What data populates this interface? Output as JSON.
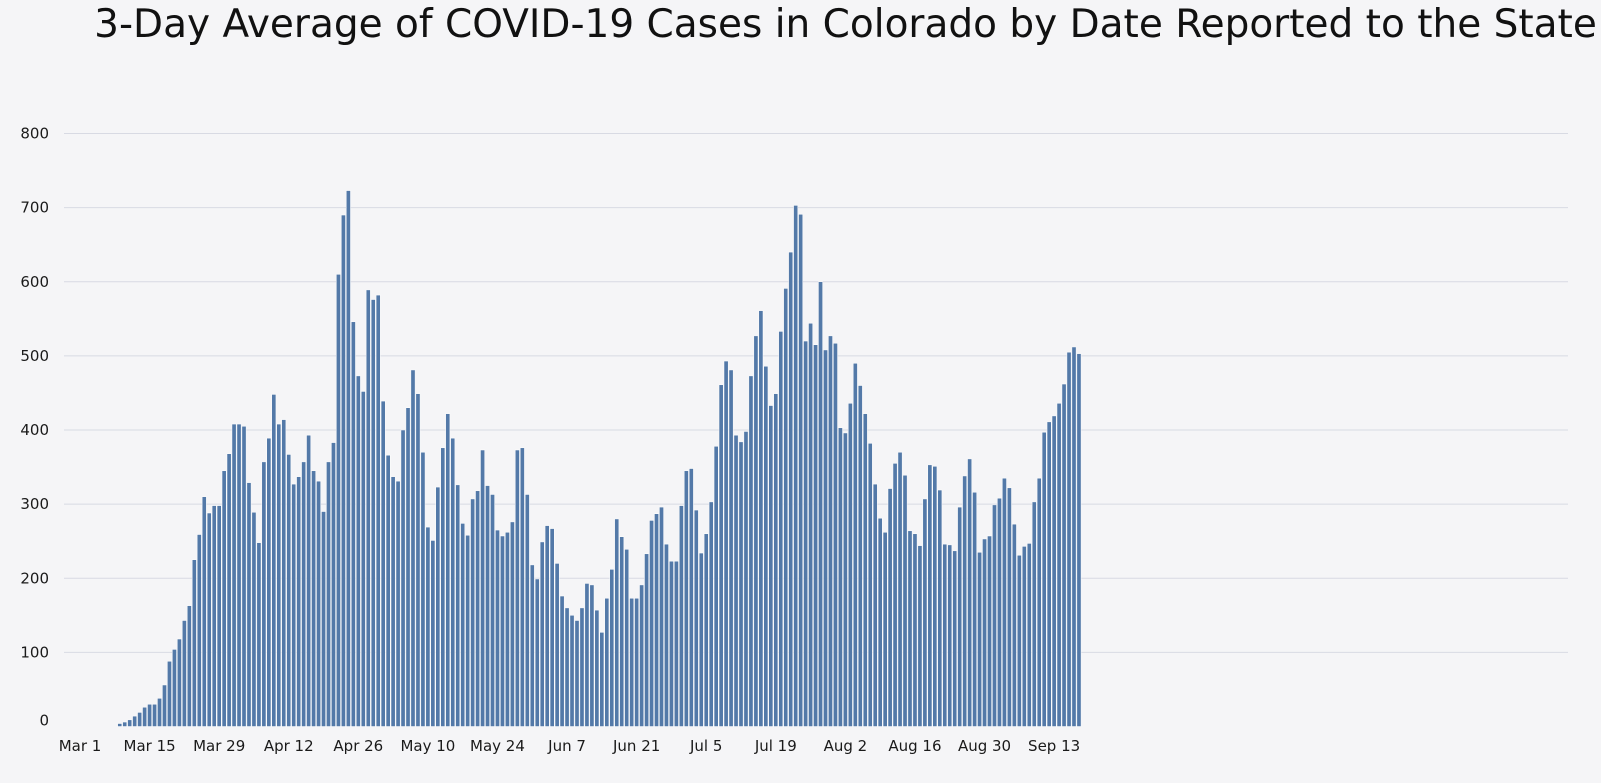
{
  "chart_data": {
    "type": "bar",
    "title": "3-Day Average of COVID-19 Cases in Colorado by Date Reported to the State",
    "xlabel": "",
    "ylabel": "",
    "ylim": [
      0,
      800
    ],
    "yticks": [
      0,
      100,
      200,
      300,
      400,
      500,
      600,
      700,
      800
    ],
    "grid": true,
    "legend": "none",
    "bar_color": "#5379a8",
    "bar_edge_color": "#ffffff",
    "background_color": "#f5f5f7",
    "grid_color": "#d8dae3",
    "start_date": "Mar 1",
    "xtick_labels": [
      {
        "label": "Mar 1",
        "index": 0
      },
      {
        "label": "Mar 15",
        "index": 14
      },
      {
        "label": "Mar 29",
        "index": 28
      },
      {
        "label": "Apr 12",
        "index": 42
      },
      {
        "label": "Apr 26",
        "index": 56
      },
      {
        "label": "May 10",
        "index": 70
      },
      {
        "label": "May 24",
        "index": 84
      },
      {
        "label": "Jun 7",
        "index": 98
      },
      {
        "label": "Jun 21",
        "index": 112
      },
      {
        "label": "Jul 5",
        "index": 126
      },
      {
        "label": "Jul 19",
        "index": 140
      },
      {
        "label": "Aug 2",
        "index": 154
      },
      {
        "label": "Aug 16",
        "index": 168
      },
      {
        "label": "Aug 30",
        "index": 182
      },
      {
        "label": "Sep 13",
        "index": 196
      }
    ],
    "values": [
      0,
      0,
      0,
      0,
      0,
      0,
      0,
      0,
      4,
      6,
      9,
      14,
      19,
      26,
      30,
      30,
      38,
      56,
      88,
      104,
      118,
      143,
      163,
      225,
      259,
      310,
      288,
      298,
      298,
      345,
      368,
      408,
      408,
      405,
      329,
      289,
      248,
      357,
      389,
      448,
      408,
      414,
      367,
      327,
      337,
      357,
      393,
      345,
      331,
      290,
      357,
      383,
      610,
      690,
      723,
      546,
      473,
      452,
      589,
      576,
      582,
      439,
      366,
      337,
      331,
      400,
      430,
      481,
      449,
      370,
      269,
      251,
      323,
      376,
      422,
      389,
      326,
      274,
      258,
      307,
      318,
      373,
      325,
      313,
      265,
      257,
      262,
      276,
      373,
      376,
      313,
      218,
      199,
      249,
      271,
      267,
      220,
      176,
      160,
      150,
      143,
      160,
      193,
      191,
      157,
      127,
      173,
      212,
      280,
      256,
      239,
      173,
      173,
      191,
      233,
      278,
      287,
      296,
      246,
      223,
      223,
      298,
      345,
      348,
      292,
      234,
      260,
      303,
      378,
      461,
      493,
      481,
      393,
      384,
      398,
      473,
      527,
      561,
      486,
      433,
      449,
      533,
      591,
      640,
      703,
      691,
      520,
      544,
      515,
      600,
      508,
      527,
      517,
      403,
      396,
      436,
      490,
      460,
      422,
      382,
      327,
      281,
      262,
      321,
      355,
      370,
      339,
      264,
      260,
      244,
      307,
      353,
      351,
      319,
      246,
      245,
      237,
      296,
      338,
      361,
      316,
      235,
      253,
      257,
      299,
      308,
      335,
      322,
      273,
      231,
      243,
      247,
      303,
      335,
      397,
      411,
      419,
      436,
      462,
      505,
      512,
      503
    ]
  }
}
